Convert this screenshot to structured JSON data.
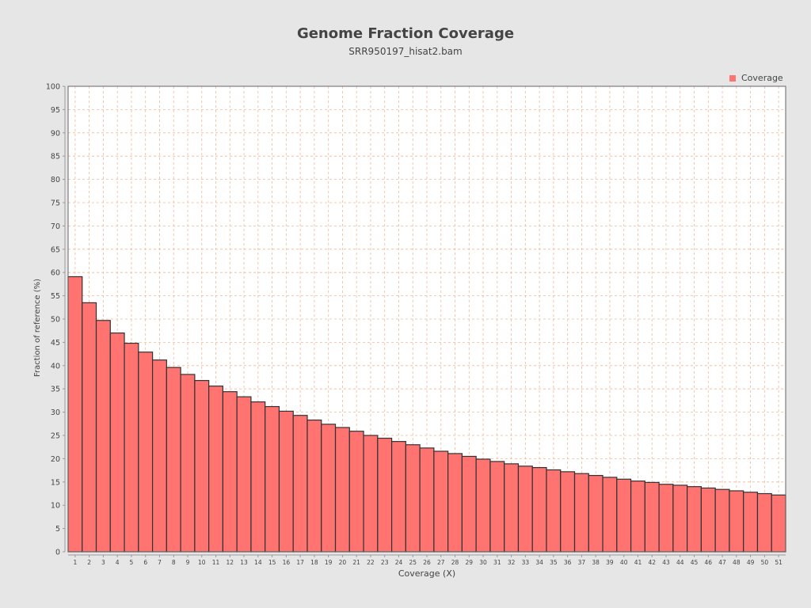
{
  "chart_data": {
    "type": "bar",
    "title": "Genome Fraction Coverage",
    "subtitle": "SRR950197_hisat2.bam",
    "xlabel": "Coverage (X)",
    "ylabel": "Fraction of reference (%)",
    "ylim": [
      0,
      100
    ],
    "y_ticks": [
      0,
      5,
      10,
      15,
      20,
      25,
      30,
      35,
      40,
      45,
      50,
      55,
      60,
      65,
      70,
      75,
      80,
      85,
      90,
      95,
      100
    ],
    "grid": true,
    "legend_position": "top-right",
    "categories": [
      "1",
      "2",
      "3",
      "4",
      "5",
      "6",
      "7",
      "8",
      "9",
      "10",
      "11",
      "12",
      "13",
      "14",
      "15",
      "16",
      "17",
      "18",
      "19",
      "20",
      "21",
      "22",
      "23",
      "24",
      "25",
      "26",
      "27",
      "28",
      "29",
      "30",
      "31",
      "32",
      "33",
      "34",
      "35",
      "36",
      "37",
      "38",
      "39",
      "40",
      "41",
      "42",
      "43",
      "44",
      "45",
      "46",
      "47",
      "48",
      "49",
      "50",
      "51"
    ],
    "series": [
      {
        "name": "Coverage",
        "color": "#ff7370",
        "values": [
          59.1,
          53.5,
          49.7,
          47.0,
          44.8,
          42.9,
          41.2,
          39.6,
          38.1,
          36.8,
          35.6,
          34.4,
          33.3,
          32.2,
          31.2,
          30.2,
          29.3,
          28.3,
          27.4,
          26.7,
          25.9,
          25.0,
          24.4,
          23.7,
          23.0,
          22.3,
          21.6,
          21.1,
          20.5,
          19.9,
          19.4,
          18.9,
          18.4,
          18.1,
          17.6,
          17.2,
          16.8,
          16.4,
          16.0,
          15.6,
          15.2,
          14.9,
          14.5,
          14.3,
          14.0,
          13.7,
          13.4,
          13.1,
          12.8,
          12.5,
          12.2
        ]
      }
    ]
  },
  "colors": {
    "background": "#e6e6e6",
    "plot_background": "#ffffff",
    "bar_fill": "#ff7370",
    "bar_stroke": "#333333",
    "grid": "#f0b898",
    "text": "#444444"
  }
}
